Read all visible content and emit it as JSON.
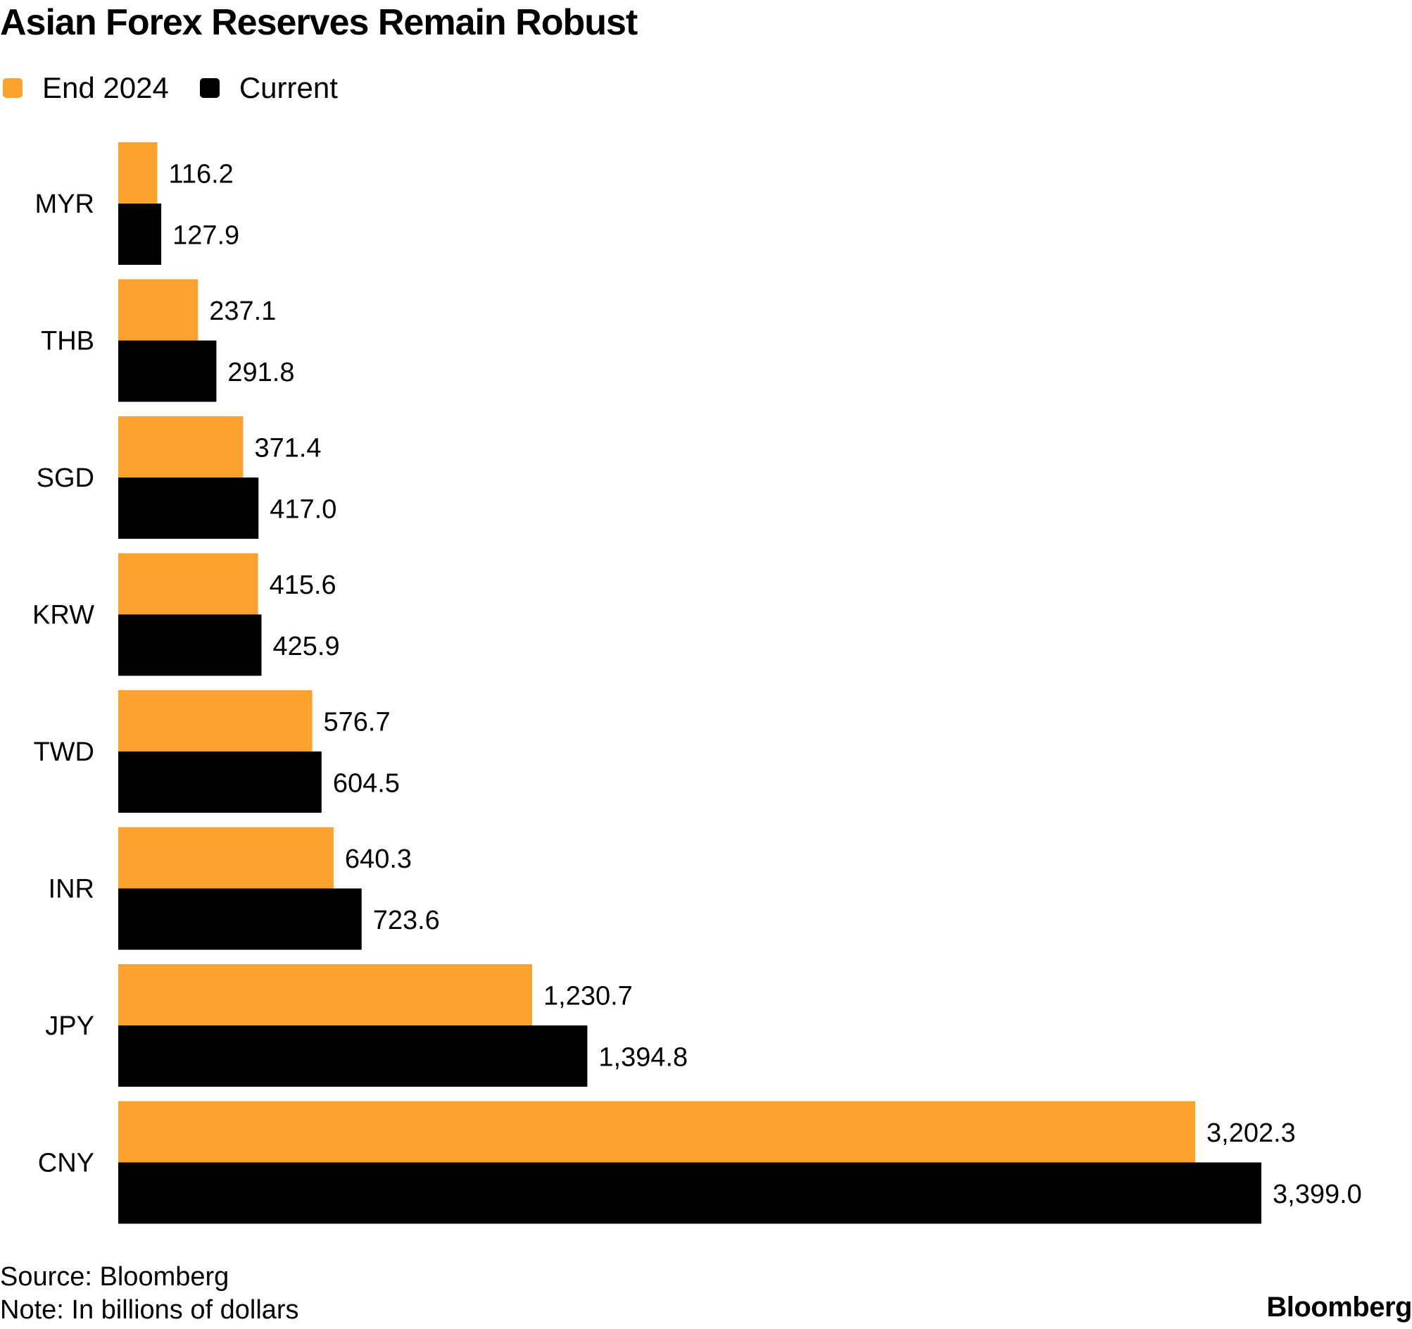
{
  "chart_data": {
    "type": "bar",
    "orientation": "horizontal",
    "title": "Asian Forex Reserves Remain Robust",
    "categories": [
      "MYR",
      "THB",
      "SGD",
      "KRW",
      "TWD",
      "INR",
      "JPY",
      "CNY"
    ],
    "series": [
      {
        "name": "End 2024",
        "color": "#FBA12E",
        "values": [
          116.2,
          237.1,
          371.4,
          415.6,
          576.7,
          640.3,
          1230.7,
          3202.3
        ],
        "labels": [
          "116.2",
          "237.1",
          "371.4",
          "415.6",
          "576.7",
          "640.3",
          "1,230.7",
          "3,202.3"
        ]
      },
      {
        "name": "Current",
        "color": "#000000",
        "values": [
          127.9,
          291.8,
          417.0,
          425.9,
          604.5,
          723.6,
          1394.8,
          3399.0
        ],
        "labels": [
          "127.9",
          "291.8",
          "417.0",
          "425.9",
          "604.5",
          "723.6",
          "1,394.8",
          "3,399.0"
        ]
      }
    ],
    "xlim": [
      0,
      3399.0
    ],
    "xlabel": "",
    "ylabel": "",
    "grid": false,
    "legend_position": "top-left"
  },
  "footer": {
    "source": "Source: Bloomberg",
    "note": "Note: In billions of dollars",
    "brand": "Bloomberg"
  }
}
